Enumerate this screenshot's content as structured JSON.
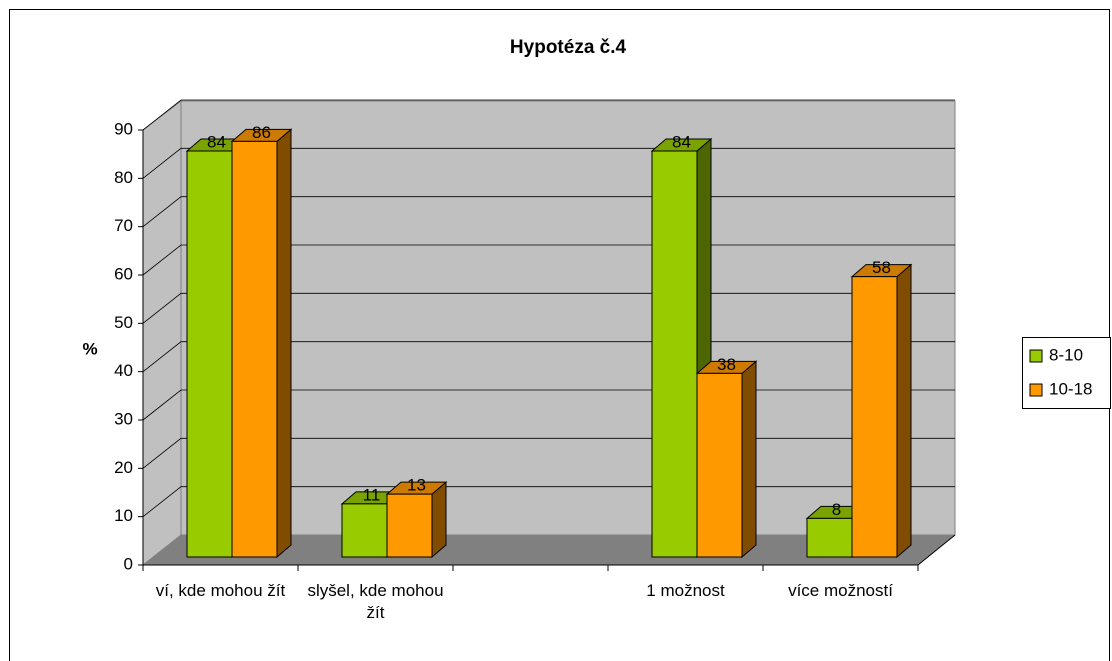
{
  "chart_data": {
    "type": "bar3d",
    "title": "Hypotéza č.4",
    "ylabel": "%",
    "categories": [
      "ví, kde mohou žít",
      "slyšel, kde mohou žít",
      null,
      "1 možnost",
      "více možností"
    ],
    "series": [
      {
        "name": "8-10",
        "color": "#99cc00",
        "values": [
          84,
          11,
          null,
          84,
          8
        ]
      },
      {
        "name": "10-18",
        "color": "#ff9900",
        "values": [
          86,
          13,
          null,
          38,
          58
        ]
      }
    ],
    "ylim": [
      0,
      90
    ],
    "yticks": [
      0,
      10,
      20,
      30,
      40,
      50,
      60,
      70,
      80,
      90
    ],
    "grid": true,
    "legend": "right"
  }
}
